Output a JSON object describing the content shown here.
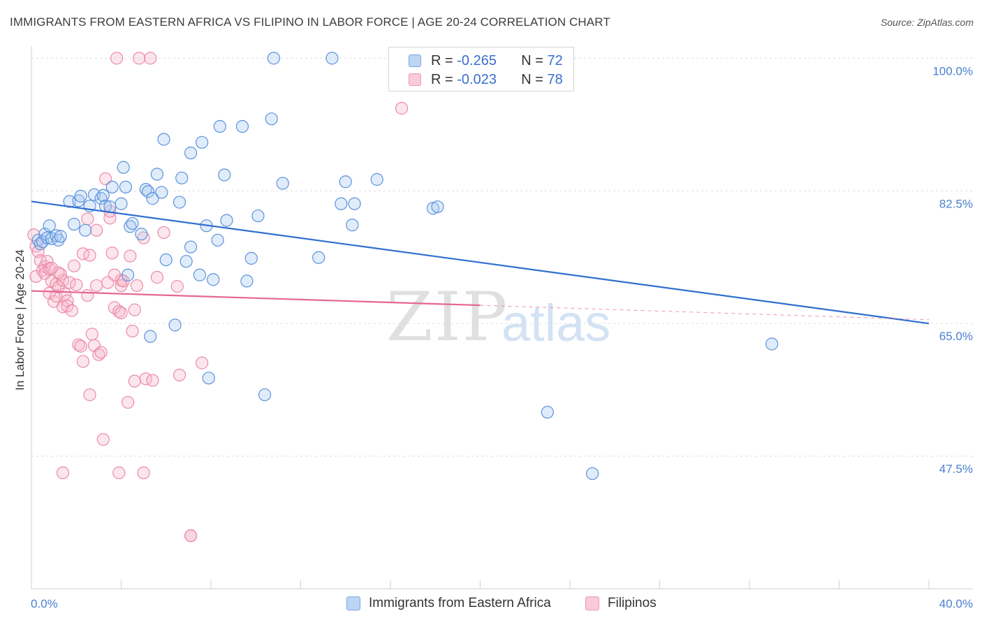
{
  "header": {
    "title": "IMMIGRANTS FROM EASTERN AFRICA VS FILIPINO IN LABOR FORCE | AGE 20-24 CORRELATION CHART",
    "source": "Source: ZipAtlas.com"
  },
  "watermark": {
    "zip": "ZIP",
    "atlas": "atlas"
  },
  "legend_top": {
    "rows": [
      {
        "r_label": "R = ",
        "r_value": "-0.265",
        "n_label": "N = ",
        "n_value": "72",
        "color": "#a8c8f0"
      },
      {
        "r_label": "R = ",
        "r_value": "-0.023",
        "n_label": "N = ",
        "n_value": "78",
        "color": "#f7b8cb"
      }
    ]
  },
  "legend_bottom": {
    "items": [
      {
        "label": "Immigrants from Eastern Africa",
        "color": "#a8c8f0"
      },
      {
        "label": "Filipinos",
        "color": "#f7b8cb"
      }
    ]
  },
  "chart_data": {
    "type": "scatter",
    "title": "IMMIGRANTS FROM EASTERN AFRICA VS FILIPINO IN LABOR FORCE | AGE 20-24 CORRELATION CHART",
    "xlabel": "",
    "ylabel": "In Labor Force | Age 20-24",
    "xlim": [
      0,
      40
    ],
    "ylim": [
      30,
      101.6
    ],
    "x_tick_labels": [
      "0.0%",
      "40.0%"
    ],
    "y_ticks": [
      100.0,
      82.5,
      65.0,
      47.5
    ],
    "y_tick_labels": [
      "100.0%",
      "82.5%",
      "65.0%",
      "47.5%"
    ],
    "grid": "horizontal dashed",
    "colors": {
      "blue_fill": "#a8c8f0",
      "blue_stroke": "#5b93dc",
      "blue_line": "#2f6fd0",
      "pink_fill": "#f7b8cb",
      "pink_stroke": "#ec8aa8",
      "pink_line": "#e5678f"
    },
    "series": [
      {
        "name": "Immigrants from Eastern Africa",
        "trend": {
          "x": [
            0,
            40
          ],
          "y": [
            81.1,
            65.0
          ]
        },
        "points": [
          [
            0.3,
            76.0
          ],
          [
            0.4,
            75.5
          ],
          [
            0.5,
            75.8
          ],
          [
            0.6,
            76.8
          ],
          [
            0.7,
            76.3
          ],
          [
            0.8,
            77.9
          ],
          [
            0.9,
            76.2
          ],
          [
            1.1,
            76.6
          ],
          [
            1.2,
            76.0
          ],
          [
            1.3,
            76.5
          ],
          [
            1.7,
            81.1
          ],
          [
            1.9,
            78.1
          ],
          [
            2.1,
            81.2
          ],
          [
            2.2,
            81.8
          ],
          [
            2.4,
            77.3
          ],
          [
            2.6,
            80.5
          ],
          [
            2.8,
            82.0
          ],
          [
            3.1,
            81.5
          ],
          [
            3.2,
            81.9
          ],
          [
            3.3,
            80.5
          ],
          [
            3.5,
            80.4
          ],
          [
            3.6,
            83.0
          ],
          [
            4.0,
            80.8
          ],
          [
            4.1,
            85.6
          ],
          [
            4.2,
            83.0
          ],
          [
            4.3,
            71.4
          ],
          [
            4.4,
            77.8
          ],
          [
            4.5,
            78.2
          ],
          [
            4.9,
            76.8
          ],
          [
            5.1,
            82.7
          ],
          [
            5.2,
            82.4
          ],
          [
            5.3,
            63.3
          ],
          [
            5.4,
            81.5
          ],
          [
            5.6,
            84.7
          ],
          [
            5.8,
            82.3
          ],
          [
            5.9,
            89.3
          ],
          [
            6.0,
            73.4
          ],
          [
            6.4,
            64.8
          ],
          [
            6.6,
            81.0
          ],
          [
            6.7,
            84.2
          ],
          [
            6.9,
            73.2
          ],
          [
            7.1,
            75.1
          ],
          [
            7.1,
            87.5
          ],
          [
            7.5,
            71.4
          ],
          [
            7.6,
            88.9
          ],
          [
            7.8,
            77.9
          ],
          [
            7.9,
            57.8
          ],
          [
            8.1,
            70.8
          ],
          [
            8.3,
            76.0
          ],
          [
            8.4,
            91.0
          ],
          [
            8.6,
            84.6
          ],
          [
            8.7,
            78.6
          ],
          [
            9.4,
            91.0
          ],
          [
            9.6,
            70.6
          ],
          [
            9.8,
            73.6
          ],
          [
            10.1,
            79.2
          ],
          [
            10.4,
            55.6
          ],
          [
            10.7,
            92.0
          ],
          [
            10.8,
            100.0
          ],
          [
            11.2,
            83.5
          ],
          [
            12.8,
            73.7
          ],
          [
            13.4,
            100.0
          ],
          [
            13.8,
            80.8
          ],
          [
            14.0,
            83.7
          ],
          [
            14.3,
            78.0
          ],
          [
            14.4,
            80.8
          ],
          [
            15.4,
            84.0
          ],
          [
            17.9,
            80.2
          ],
          [
            18.1,
            80.4
          ],
          [
            23.0,
            53.3
          ],
          [
            25.0,
            45.2
          ],
          [
            33.0,
            62.3
          ]
        ]
      },
      {
        "name": "Filipinos",
        "trend": {
          "x": [
            0,
            20
          ],
          "y": [
            69.3,
            67.4
          ]
        },
        "trend_extension": {
          "x": [
            20,
            40
          ],
          "y": [
            67.4,
            65.5
          ]
        },
        "points": [
          [
            0.1,
            76.7
          ],
          [
            0.2,
            75.2
          ],
          [
            0.2,
            71.2
          ],
          [
            0.3,
            74.5
          ],
          [
            0.4,
            73.3
          ],
          [
            0.5,
            72.0
          ],
          [
            0.6,
            72.5
          ],
          [
            0.6,
            71.6
          ],
          [
            0.7,
            73.2
          ],
          [
            0.8,
            69.0
          ],
          [
            0.8,
            72.2
          ],
          [
            0.9,
            70.6
          ],
          [
            1.0,
            67.9
          ],
          [
            1.1,
            70.2
          ],
          [
            1.1,
            68.6
          ],
          [
            1.2,
            69.8
          ],
          [
            1.3,
            71.5
          ],
          [
            1.4,
            67.2
          ],
          [
            1.4,
            70.7
          ],
          [
            1.5,
            68.9
          ],
          [
            1.6,
            68.0
          ],
          [
            1.6,
            67.3
          ],
          [
            1.7,
            70.4
          ],
          [
            1.8,
            66.7
          ],
          [
            1.9,
            72.6
          ],
          [
            2.0,
            70.1
          ],
          [
            2.1,
            62.2
          ],
          [
            2.2,
            62.0
          ],
          [
            2.3,
            60.0
          ],
          [
            2.3,
            74.2
          ],
          [
            2.5,
            68.7
          ],
          [
            2.5,
            78.8
          ],
          [
            2.6,
            55.6
          ],
          [
            2.6,
            74.0
          ],
          [
            2.7,
            63.6
          ],
          [
            2.8,
            62.1
          ],
          [
            2.9,
            70.0
          ],
          [
            2.9,
            77.3
          ],
          [
            3.0,
            60.9
          ],
          [
            3.1,
            61.2
          ],
          [
            3.2,
            49.7
          ],
          [
            3.3,
            84.1
          ],
          [
            3.4,
            70.4
          ],
          [
            3.5,
            78.9
          ],
          [
            3.5,
            79.8
          ],
          [
            3.6,
            74.3
          ],
          [
            3.7,
            71.4
          ],
          [
            3.7,
            67.1
          ],
          [
            3.9,
            66.6
          ],
          [
            4.0,
            70.7
          ],
          [
            4.0,
            66.4
          ],
          [
            4.0,
            70.0
          ],
          [
            4.1,
            70.6
          ],
          [
            4.3,
            54.6
          ],
          [
            4.4,
            73.9
          ],
          [
            4.5,
            64.0
          ],
          [
            4.6,
            57.4
          ],
          [
            4.6,
            66.8
          ],
          [
            4.7,
            70.0
          ],
          [
            5.0,
            76.3
          ],
          [
            3.8,
            100.0
          ],
          [
            3.9,
            45.3
          ],
          [
            4.8,
            100.0
          ],
          [
            5.0,
            45.3
          ],
          [
            5.1,
            57.7
          ],
          [
            5.3,
            100.0
          ],
          [
            5.4,
            57.5
          ],
          [
            5.6,
            71.1
          ],
          [
            5.9,
            77.0
          ],
          [
            6.5,
            69.9
          ],
          [
            6.6,
            58.2
          ],
          [
            7.1,
            37.0
          ],
          [
            7.1,
            37.0
          ],
          [
            7.6,
            59.8
          ],
          [
            16.5,
            93.4
          ],
          [
            1.4,
            45.3
          ],
          [
            1.2,
            71.7
          ],
          [
            0.9,
            72.3
          ]
        ]
      }
    ]
  }
}
